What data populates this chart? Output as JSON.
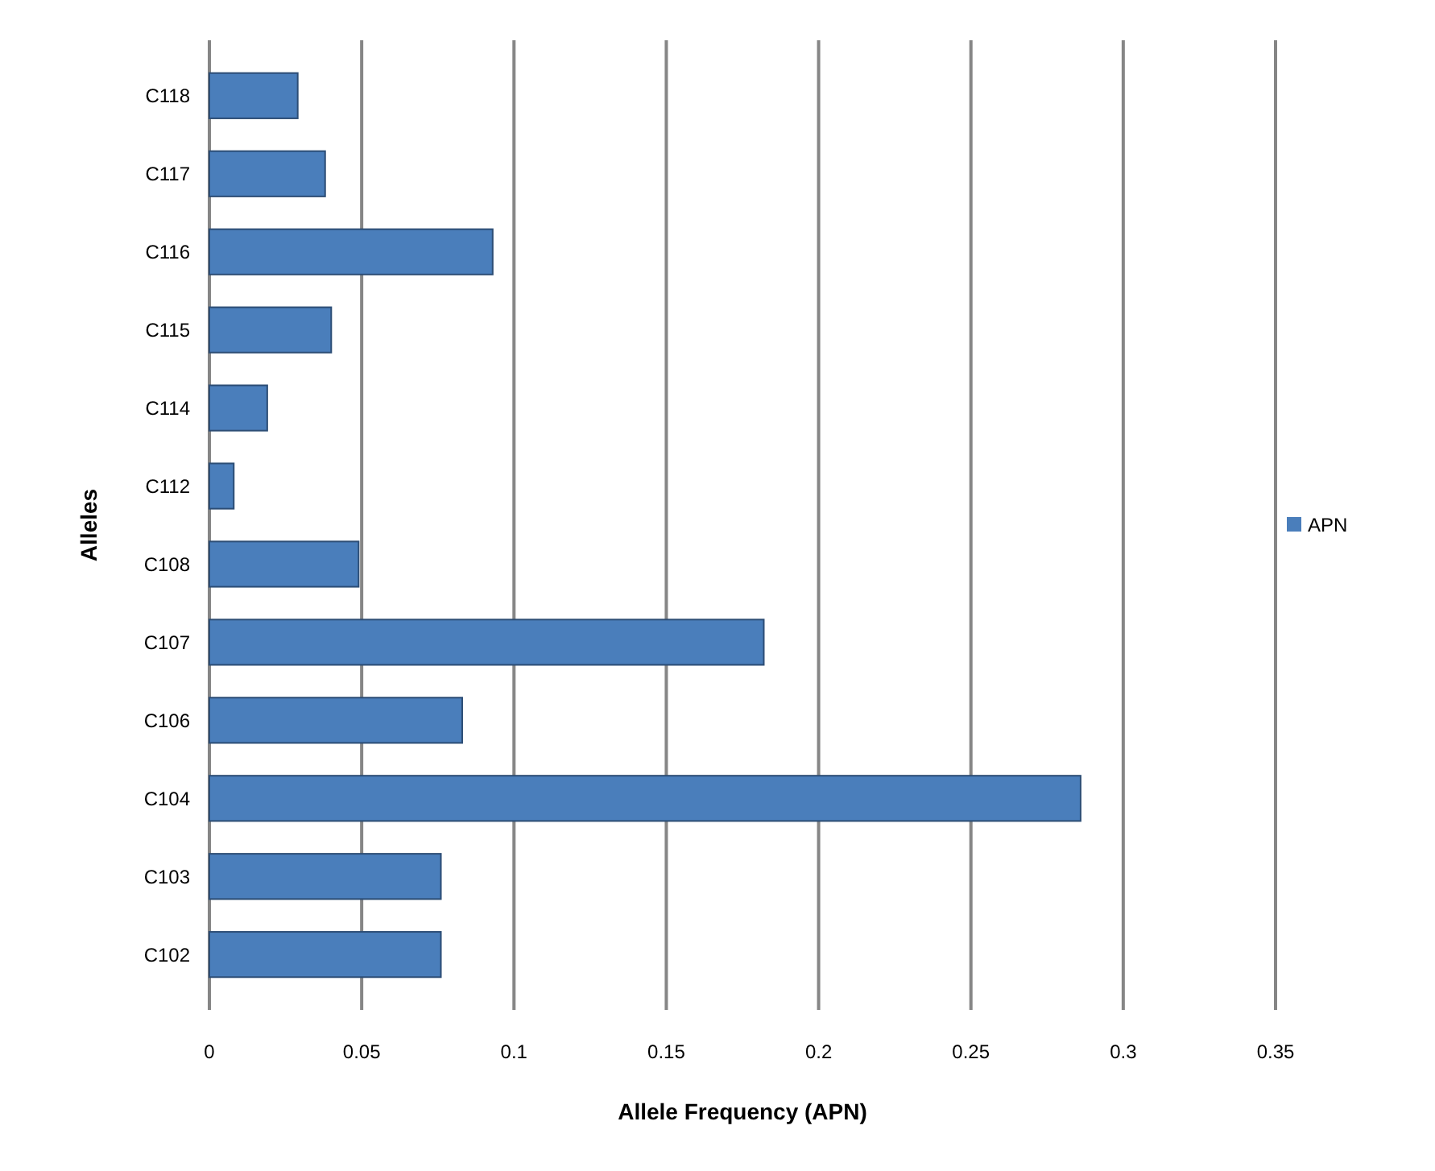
{
  "chart_data": {
    "type": "bar",
    "orientation": "horizontal",
    "xlabel": "Allele Frequency (APN)",
    "ylabel": "Alleles",
    "categories": [
      "C118",
      "C117",
      "C116",
      "C115",
      "C114",
      "C112",
      "C108",
      "C107",
      "C106",
      "C104",
      "C103",
      "C102"
    ],
    "series": [
      {
        "name": "APN",
        "color": "#4a7ebb",
        "values": [
          0.029,
          0.038,
          0.093,
          0.04,
          0.019,
          0.008,
          0.049,
          0.182,
          0.083,
          0.286,
          0.076,
          0.076
        ]
      }
    ],
    "xlim": [
      0,
      0.35
    ],
    "xticks": [
      0,
      0.05,
      0.1,
      0.15,
      0.2,
      0.25,
      0.3,
      0.35
    ],
    "grid": "x",
    "legend": "right"
  }
}
